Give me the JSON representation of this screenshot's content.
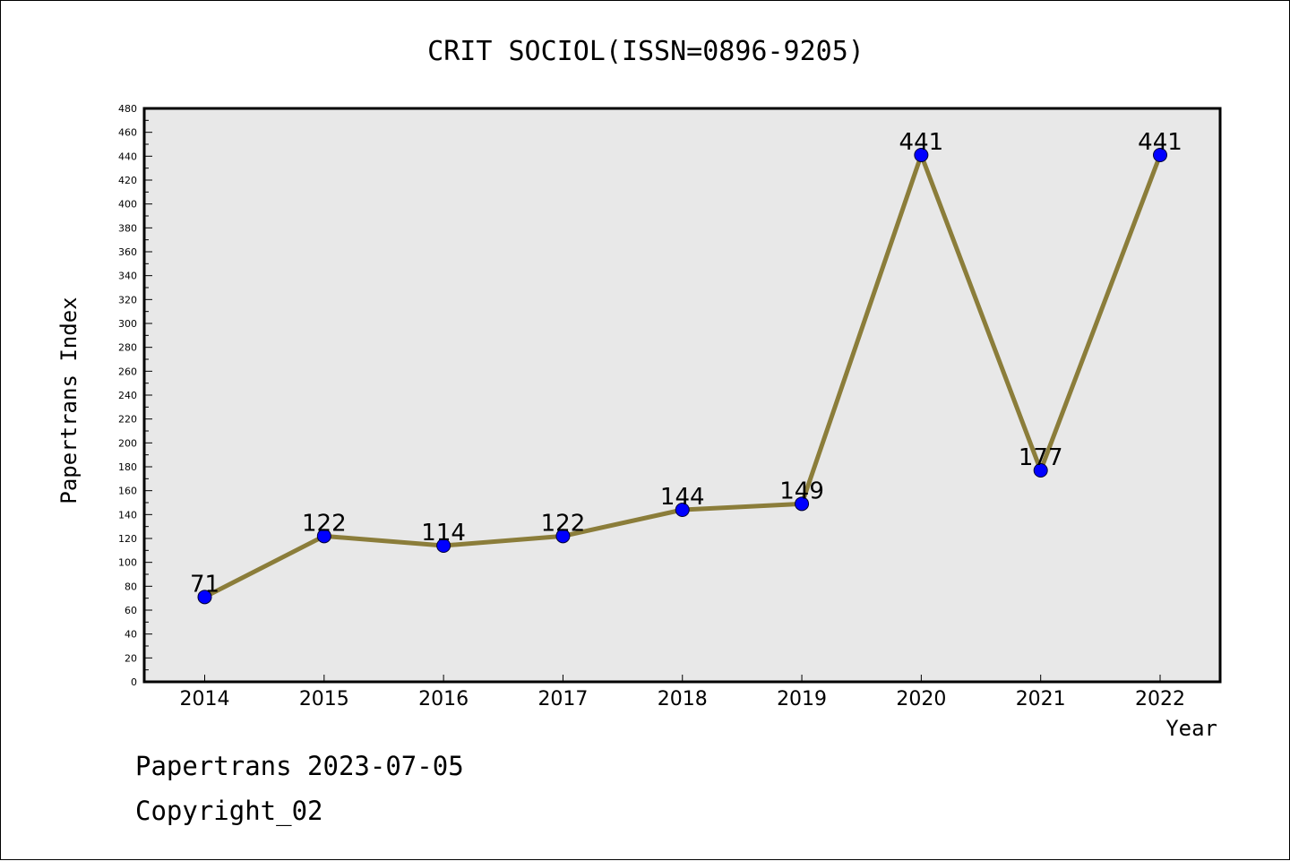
{
  "chart_data": {
    "type": "line",
    "title": "CRIT SOCIOL(ISSN=0896-9205)",
    "xlabel": "Year",
    "ylabel": "Papertrans Index",
    "categories": [
      "2014",
      "2015",
      "2016",
      "2017",
      "2018",
      "2019",
      "2020",
      "2021",
      "2022"
    ],
    "series": [
      {
        "values": [
          71,
          122,
          114,
          122,
          144,
          149,
          441,
          177,
          441
        ],
        "line_color": "#8B7D3A",
        "marker_color": "#0000FF"
      }
    ],
    "ylim": [
      0,
      480
    ],
    "ytick_step": 20,
    "ytick_labels": [
      "0",
      "20",
      "40",
      "60",
      "80",
      "100",
      "120",
      "140",
      "160",
      "180",
      "200",
      "220",
      "240",
      "260",
      "280",
      "300",
      "320",
      "340",
      "360",
      "380",
      "400",
      "420",
      "440",
      "460",
      "480"
    ],
    "grid": false,
    "plot_background": "#E8E8E8",
    "data_labels": true
  },
  "footer": {
    "line1": "Papertrans 2023-07-05",
    "line2": "Copyright_02"
  }
}
